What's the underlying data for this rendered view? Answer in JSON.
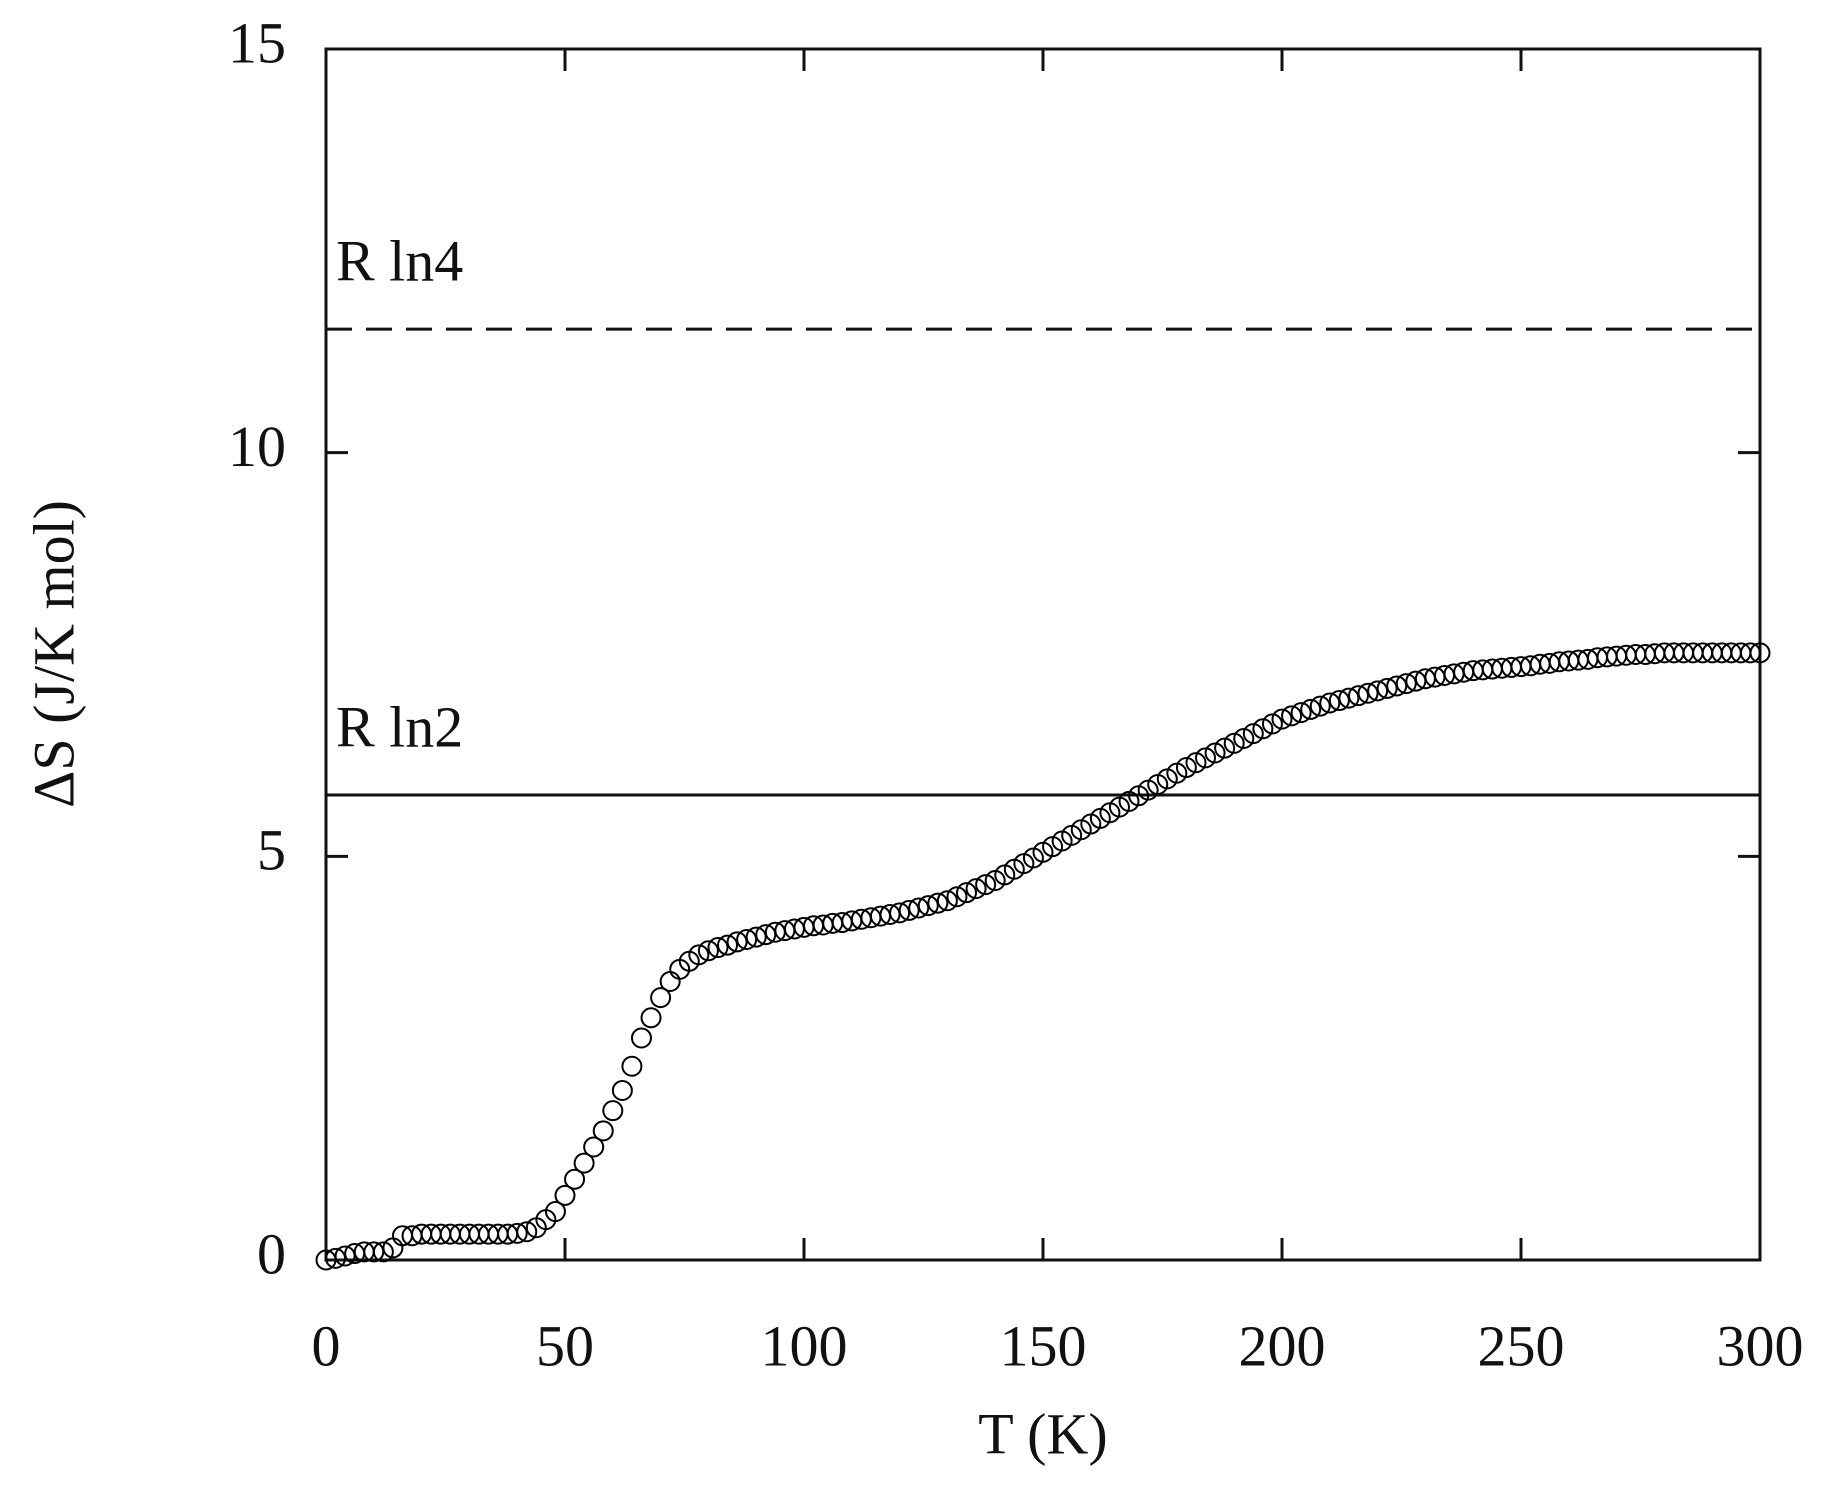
{
  "chart_data": {
    "type": "scatter",
    "xlabel": "T (K)",
    "ylabel": "ΔS (J/K mol)",
    "xlim": [
      0,
      300
    ],
    "xticks": [
      0,
      50,
      100,
      150,
      200,
      250,
      300
    ],
    "ylim": [
      0,
      15
    ],
    "yticks": [
      0,
      5,
      10,
      15
    ],
    "marker_color": "#000000",
    "reference_lines": [
      {
        "label": "R ln4",
        "value": 11.53,
        "style": "dashed"
      },
      {
        "label": "R ln2",
        "value": 5.76,
        "style": "solid"
      }
    ],
    "x": [
      0,
      2,
      4,
      6,
      8,
      10,
      12,
      14,
      16,
      18,
      20,
      22,
      24,
      26,
      28,
      30,
      32,
      34,
      36,
      38,
      40,
      42,
      44,
      46,
      48,
      50,
      52,
      54,
      56,
      58,
      60,
      62,
      64,
      66,
      68,
      70,
      72,
      74,
      76,
      78,
      80,
      82,
      84,
      86,
      88,
      90,
      92,
      94,
      96,
      98,
      100,
      102,
      104,
      106,
      108,
      110,
      112,
      114,
      116,
      118,
      120,
      122,
      124,
      126,
      128,
      130,
      132,
      134,
      136,
      138,
      140,
      142,
      144,
      146,
      148,
      150,
      152,
      154,
      156,
      158,
      160,
      162,
      164,
      166,
      168,
      170,
      172,
      174,
      176,
      178,
      180,
      182,
      184,
      186,
      188,
      190,
      192,
      194,
      196,
      198,
      200,
      202,
      204,
      206,
      208,
      210,
      212,
      214,
      216,
      218,
      220,
      222,
      224,
      226,
      228,
      230,
      232,
      234,
      236,
      238,
      240,
      242,
      244,
      246,
      248,
      250,
      252,
      254,
      256,
      258,
      260,
      262,
      264,
      266,
      268,
      270,
      272,
      274,
      276,
      278,
      280,
      282,
      284,
      286,
      288,
      290,
      292,
      294,
      296,
      298,
      300
    ],
    "values": [
      0,
      0.02,
      0.05,
      0.08,
      0.1,
      0.1,
      0.1,
      0.15,
      0.3,
      0.3,
      0.32,
      0.32,
      0.32,
      0.32,
      0.32,
      0.32,
      0.32,
      0.32,
      0.32,
      0.32,
      0.33,
      0.35,
      0.4,
      0.5,
      0.6,
      0.8,
      1.0,
      1.2,
      1.4,
      1.6,
      1.85,
      2.1,
      2.4,
      2.75,
      3.0,
      3.25,
      3.45,
      3.6,
      3.7,
      3.78,
      3.83,
      3.87,
      3.9,
      3.94,
      3.97,
      4.0,
      4.03,
      4.06,
      4.08,
      4.1,
      4.12,
      4.14,
      4.15,
      4.17,
      4.18,
      4.2,
      4.22,
      4.24,
      4.26,
      4.28,
      4.3,
      4.33,
      4.36,
      4.39,
      4.42,
      4.45,
      4.5,
      4.55,
      4.6,
      4.65,
      4.7,
      4.77,
      4.84,
      4.91,
      4.98,
      5.05,
      5.12,
      5.19,
      5.26,
      5.33,
      5.4,
      5.47,
      5.54,
      5.61,
      5.68,
      5.75,
      5.82,
      5.89,
      5.96,
      6.03,
      6.1,
      6.16,
      6.22,
      6.28,
      6.34,
      6.4,
      6.46,
      6.52,
      6.58,
      6.64,
      6.7,
      6.74,
      6.78,
      6.82,
      6.86,
      6.9,
      6.93,
      6.96,
      6.99,
      7.02,
      7.05,
      7.08,
      7.11,
      7.14,
      7.17,
      7.2,
      7.22,
      7.24,
      7.26,
      7.28,
      7.3,
      7.31,
      7.32,
      7.33,
      7.34,
      7.35,
      7.36,
      7.38,
      7.39,
      7.41,
      7.42,
      7.43,
      7.44,
      7.46,
      7.47,
      7.48,
      7.49,
      7.5,
      7.5,
      7.51,
      7.52,
      7.52,
      7.52,
      7.52,
      7.52,
      7.52,
      7.52,
      7.52,
      7.52,
      7.52,
      7.52
    ]
  }
}
